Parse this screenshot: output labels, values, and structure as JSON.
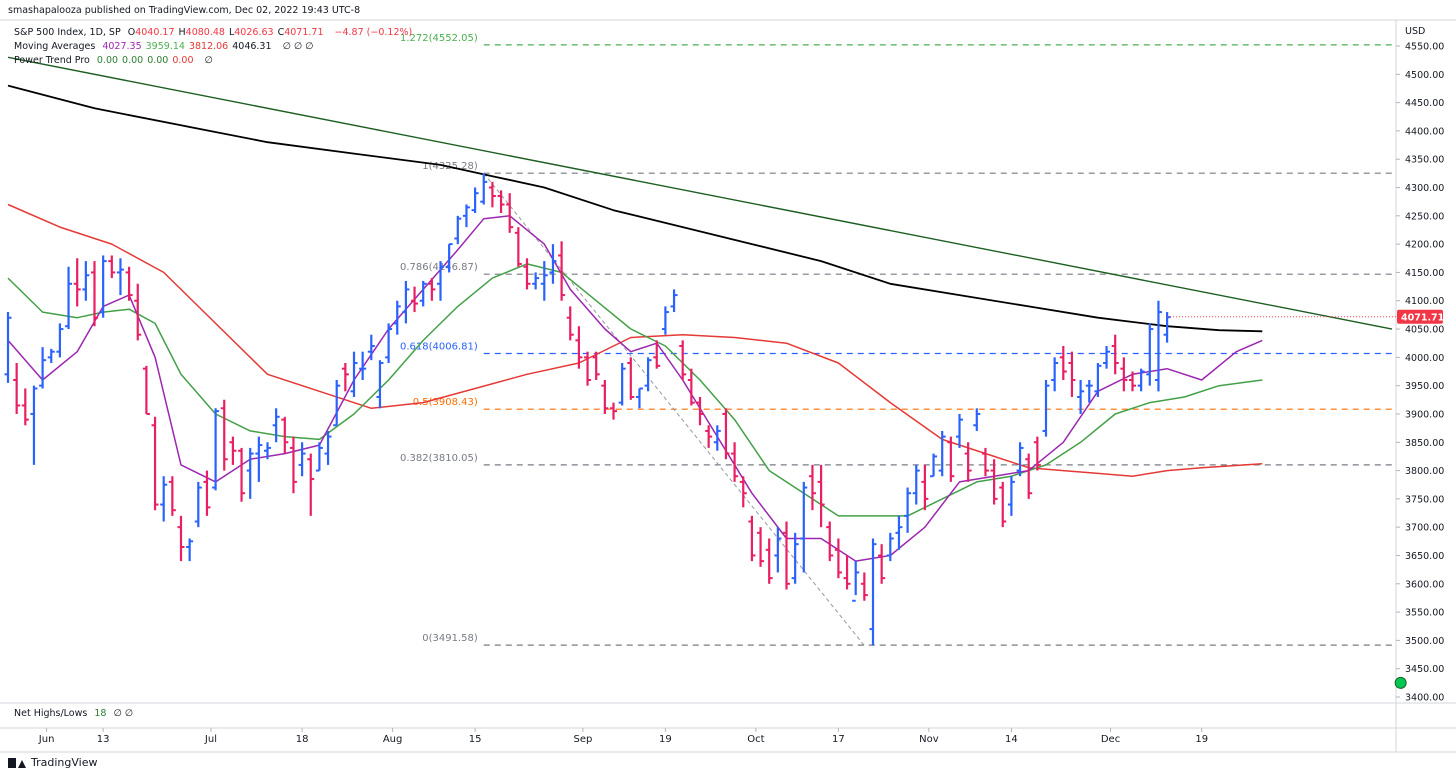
{
  "header": {
    "published": "smashapalooza published on TradingView.com, Dec 02, 2022 19:43 UTC-8",
    "symbol": "S&P 500 Index, 1D, SP",
    "ohlc": [
      {
        "k": "O",
        "v": "4040.17"
      },
      {
        "k": "H",
        "v": "4080.48"
      },
      {
        "k": "L",
        "v": "4026.63"
      },
      {
        "k": "C",
        "v": "4071.71"
      }
    ],
    "change": "−4.87 (−0.12%)",
    "ma_label": "Moving Averages",
    "ma_values": [
      {
        "v": "4027.35",
        "color": "#9c27b0"
      },
      {
        "v": "3959.14",
        "color": "#4caf50"
      },
      {
        "v": "3812.06",
        "color": "#e53935"
      },
      {
        "v": "4046.31",
        "color": "#131722"
      }
    ],
    "ma_extra": "∅ ∅ ∅",
    "ptp_label": "Power Trend Pro",
    "ptp_values": [
      {
        "v": "0.00",
        "color": "#2e7d32"
      },
      {
        "v": "0.00",
        "color": "#2e7d32"
      },
      {
        "v": "0.00",
        "color": "#2e7d32"
      },
      {
        "v": "0.00",
        "color": "#e53935"
      }
    ],
    "ptp_extra": "∅"
  },
  "subpane": {
    "label": "Net Highs/Lows",
    "value": "18",
    "extra": "∅ ∅"
  },
  "axis_currency": "USD",
  "footer": {
    "brand": "TradingView"
  },
  "colors": {
    "up": "#2962ff",
    "down": "#e91e63",
    "ma_fast": "#9c27b0",
    "ma_mid": "#43a047",
    "ma_slow": "#e53935",
    "ma200": "#000000",
    "trendline": "#1b5e20",
    "last_badge": "#f23645"
  },
  "chart_data": {
    "type": "ohlc",
    "title": "S&P 500 Index, 1D, SP",
    "y_axis": {
      "ylim": [
        3380,
        4600
      ],
      "ticks": [
        3400,
        3450,
        3500,
        3550,
        3600,
        3650,
        3700,
        3750,
        3800,
        3850,
        3900,
        3950,
        4000,
        4050,
        4100,
        4150,
        4200,
        4250,
        4300,
        4350,
        4400,
        4450,
        4500,
        4550
      ],
      "last_price": "4071.71"
    },
    "x_axis": {
      "labels": [
        {
          "t": "Jun",
          "i": 4
        },
        {
          "t": "13",
          "i": 11
        },
        {
          "t": "Jul",
          "i": 23
        },
        {
          "t": "18",
          "i": 34
        },
        {
          "t": "Aug",
          "i": 44
        },
        {
          "t": "15",
          "i": 54
        },
        {
          "t": "Sep",
          "i": 66
        },
        {
          "t": "19",
          "i": 76
        },
        {
          "t": "Oct",
          "i": 86
        },
        {
          "t": "17",
          "i": 96
        },
        {
          "t": "Nov",
          "i": 106
        },
        {
          "t": "14",
          "i": 116
        },
        {
          "t": "Dec",
          "i": 127
        },
        {
          "t": "19",
          "i": 138
        }
      ]
    },
    "fib_levels": [
      {
        "label": "1.272(4552.05)",
        "price": 4552.05,
        "color": "#4caf50"
      },
      {
        "label": "1(4325.28)",
        "price": 4325.28,
        "color": "#787b86"
      },
      {
        "label": "0.786(4146.87)",
        "price": 4146.87,
        "color": "#787b86"
      },
      {
        "label": "0.618(4006.81)",
        "price": 4006.81,
        "color": "#2962ff"
      },
      {
        "label": "0.5(3908.43)",
        "price": 3908.43,
        "color": "#ff6d00"
      },
      {
        "label": "0.382(3810.05)",
        "price": 3810.05,
        "color": "#787b86"
      },
      {
        "label": "0(3491.58)",
        "price": 3491.58,
        "color": "#787b86"
      }
    ],
    "fib_start_index": 55,
    "fib_end_index": 143,
    "first_bar_x": 8,
    "ohlc": [
      [
        3970,
        4080,
        3955,
        4070
      ],
      [
        3960,
        3990,
        3900,
        3915
      ],
      [
        3915,
        3945,
        3880,
        3890
      ],
      [
        3900,
        3950,
        3810,
        3945
      ],
      [
        3950,
        4018,
        3945,
        3995
      ],
      [
        4000,
        4015,
        3990,
        4010
      ],
      [
        4010,
        4060,
        4000,
        4050
      ],
      [
        4055,
        4160,
        4050,
        4130
      ],
      [
        4130,
        4175,
        4090,
        4120
      ],
      [
        4120,
        4170,
        4100,
        4145
      ],
      [
        4150,
        4170,
        4055,
        4070
      ],
      [
        4080,
        4180,
        4070,
        4170
      ],
      [
        4170,
        4180,
        4140,
        4150
      ],
      [
        4150,
        4175,
        4110,
        4155
      ],
      [
        4150,
        4160,
        4100,
        4110
      ],
      [
        4100,
        4130,
        4030,
        4040
      ],
      [
        3980,
        3985,
        3900,
        3900
      ],
      [
        3880,
        3895,
        3730,
        3740
      ],
      [
        3740,
        3790,
        3710,
        3775
      ],
      [
        3780,
        3790,
        3720,
        3730
      ],
      [
        3700,
        3720,
        3640,
        3665
      ],
      [
        3665,
        3680,
        3640,
        3675
      ],
      [
        3710,
        3780,
        3700,
        3770
      ],
      [
        3780,
        3800,
        3720,
        3735
      ],
      [
        3770,
        3910,
        3765,
        3905
      ],
      [
        3910,
        3925,
        3800,
        3820
      ],
      [
        3850,
        3860,
        3810,
        3835
      ],
      [
        3835,
        3840,
        3745,
        3760
      ],
      [
        3800,
        3840,
        3750,
        3830
      ],
      [
        3830,
        3860,
        3780,
        3845
      ],
      [
        3835,
        3850,
        3820,
        3840
      ],
      [
        3880,
        3910,
        3850,
        3895
      ],
      [
        3890,
        3895,
        3830,
        3850
      ],
      [
        3840,
        3860,
        3760,
        3780
      ],
      [
        3810,
        3850,
        3790,
        3830
      ],
      [
        3820,
        3830,
        3720,
        3785
      ],
      [
        3800,
        3850,
        3800,
        3840
      ],
      [
        3830,
        3870,
        3810,
        3860
      ],
      [
        3880,
        3960,
        3880,
        3950
      ],
      [
        3980,
        3990,
        3940,
        3970
      ],
      [
        3940,
        4010,
        3930,
        3990
      ],
      [
        3980,
        4010,
        3960,
        3980
      ],
      [
        4010,
        4040,
        3995,
        4020
      ],
      [
        3930,
        3995,
        3910,
        3990
      ],
      [
        4000,
        4060,
        3990,
        4050
      ],
      [
        4060,
        4100,
        4040,
        4090
      ],
      [
        4080,
        4135,
        4060,
        4120
      ],
      [
        4100,
        4125,
        4080,
        4095
      ],
      [
        4100,
        4135,
        4090,
        4130
      ],
      [
        4130,
        4140,
        4100,
        4120
      ],
      [
        4130,
        4170,
        4100,
        4160
      ],
      [
        4160,
        4200,
        4150,
        4200
      ],
      [
        4210,
        4250,
        4200,
        4245
      ],
      [
        4250,
        4270,
        4230,
        4265
      ],
      [
        4260,
        4300,
        4255,
        4290
      ],
      [
        4275,
        4325,
        4270,
        4310
      ],
      [
        4300,
        4310,
        4265,
        4285
      ],
      [
        4285,
        4295,
        4255,
        4270
      ],
      [
        4270,
        4290,
        4220,
        4230
      ],
      [
        4220,
        4230,
        4160,
        4165
      ],
      [
        4160,
        4175,
        4120,
        4130
      ],
      [
        4130,
        4150,
        4120,
        4140
      ],
      [
        4130,
        4170,
        4100,
        4145
      ],
      [
        4150,
        4200,
        4130,
        4170
      ],
      [
        4180,
        4205,
        4100,
        4110
      ],
      [
        4070,
        4090,
        4030,
        4040
      ],
      [
        4030,
        4055,
        3980,
        4000
      ],
      [
        4000,
        4010,
        3950,
        3960
      ],
      [
        4000,
        4010,
        3960,
        3970
      ],
      [
        3950,
        3960,
        3900,
        3910
      ],
      [
        3910,
        3920,
        3890,
        3905
      ],
      [
        3920,
        3990,
        3915,
        3980
      ],
      [
        3990,
        4000,
        3925,
        3930
      ],
      [
        3930,
        3945,
        3910,
        3945
      ],
      [
        3950,
        4000,
        3940,
        3995
      ],
      [
        4000,
        4030,
        3980,
        3985
      ],
      [
        4050,
        4090,
        4040,
        4080
      ],
      [
        4090,
        4120,
        4080,
        4110
      ],
      [
        4020,
        4030,
        3960,
        3970
      ],
      [
        3960,
        3980,
        3915,
        3920
      ],
      [
        3920,
        3930,
        3880,
        3900
      ],
      [
        3870,
        3880,
        3840,
        3860
      ],
      [
        3850,
        3880,
        3835,
        3870
      ],
      [
        3900,
        3910,
        3820,
        3830
      ],
      [
        3830,
        3850,
        3780,
        3790
      ],
      [
        3780,
        3790,
        3735,
        3760
      ],
      [
        3710,
        3720,
        3640,
        3650
      ],
      [
        3690,
        3700,
        3630,
        3640
      ],
      [
        3660,
        3680,
        3600,
        3610
      ],
      [
        3650,
        3700,
        3620,
        3680
      ],
      [
        3690,
        3710,
        3590,
        3600
      ],
      [
        3610,
        3690,
        3600,
        3670
      ],
      [
        3680,
        3780,
        3620,
        3770
      ],
      [
        3790,
        3810,
        3730,
        3760
      ],
      [
        3780,
        3810,
        3700,
        3740
      ],
      [
        3700,
        3710,
        3640,
        3650
      ],
      [
        3660,
        3680,
        3610,
        3620
      ],
      [
        3610,
        3650,
        3590,
        3600
      ],
      [
        3570,
        3640,
        3580,
        3620
      ],
      [
        3600,
        3620,
        3570,
        3580
      ],
      [
        3520,
        3680,
        3491,
        3670
      ],
      [
        3650,
        3670,
        3600,
        3610
      ],
      [
        3650,
        3690,
        3640,
        3680
      ],
      [
        3690,
        3720,
        3660,
        3700
      ],
      [
        3720,
        3770,
        3690,
        3760
      ],
      [
        3760,
        3810,
        3740,
        3800
      ],
      [
        3780,
        3810,
        3730,
        3750
      ],
      [
        3790,
        3830,
        3790,
        3825
      ],
      [
        3800,
        3870,
        3790,
        3860
      ],
      [
        3850,
        3860,
        3780,
        3790
      ],
      [
        3860,
        3900,
        3840,
        3890
      ],
      [
        3830,
        3850,
        3780,
        3800
      ],
      [
        3880,
        3910,
        3870,
        3900
      ],
      [
        3830,
        3840,
        3790,
        3800
      ],
      [
        3800,
        3820,
        3740,
        3750
      ],
      [
        3770,
        3780,
        3700,
        3710
      ],
      [
        3740,
        3790,
        3720,
        3780
      ],
      [
        3800,
        3850,
        3790,
        3840
      ],
      [
        3820,
        3830,
        3750,
        3760
      ],
      [
        3850,
        3860,
        3800,
        3810
      ],
      [
        3870,
        3960,
        3860,
        3950
      ],
      [
        3960,
        4000,
        3940,
        3990
      ],
      [
        4000,
        4020,
        3960,
        3975
      ],
      [
        3990,
        4010,
        3930,
        3960
      ],
      [
        3930,
        3960,
        3900,
        3940
      ],
      [
        3950,
        3960,
        3920,
        3950
      ],
      [
        3940,
        3990,
        3930,
        3985
      ],
      [
        3990,
        4020,
        3980,
        4010
      ],
      [
        4020,
        4040,
        3970,
        3990
      ],
      [
        3980,
        4000,
        3940,
        3960
      ],
      [
        3960,
        3975,
        3940,
        3950
      ],
      [
        3950,
        3980,
        3940,
        3975
      ],
      [
        3970,
        4060,
        3950,
        4050
      ],
      [
        3960,
        4100,
        3940,
        4080
      ],
      [
        4040,
        4080,
        4026,
        4071
      ]
    ],
    "ma_fast": [
      [
        0,
        4030
      ],
      [
        4,
        3960
      ],
      [
        8,
        4010
      ],
      [
        11,
        4090
      ],
      [
        14,
        4110
      ],
      [
        17,
        4000
      ],
      [
        20,
        3810
      ],
      [
        24,
        3780
      ],
      [
        28,
        3820
      ],
      [
        32,
        3830
      ],
      [
        36,
        3845
      ],
      [
        40,
        3960
      ],
      [
        44,
        4050
      ],
      [
        48,
        4120
      ],
      [
        52,
        4190
      ],
      [
        55,
        4245
      ],
      [
        58,
        4250
      ],
      [
        62,
        4200
      ],
      [
        65,
        4120
      ],
      [
        69,
        4050
      ],
      [
        72,
        4010
      ],
      [
        75,
        4025
      ],
      [
        78,
        3960
      ],
      [
        82,
        3860
      ],
      [
        86,
        3760
      ],
      [
        90,
        3680
      ],
      [
        94,
        3680
      ],
      [
        98,
        3640
      ],
      [
        102,
        3650
      ],
      [
        106,
        3700
      ],
      [
        110,
        3780
      ],
      [
        114,
        3790
      ],
      [
        118,
        3800
      ],
      [
        122,
        3850
      ],
      [
        126,
        3940
      ],
      [
        130,
        3970
      ],
      [
        134,
        3980
      ],
      [
        138,
        3960
      ],
      [
        142,
        4010
      ],
      [
        145,
        4030
      ]
    ],
    "ma_mid": [
      [
        0,
        4140
      ],
      [
        4,
        4080
      ],
      [
        8,
        4070
      ],
      [
        11,
        4080
      ],
      [
        14,
        4085
      ],
      [
        17,
        4060
      ],
      [
        20,
        3970
      ],
      [
        24,
        3900
      ],
      [
        28,
        3870
      ],
      [
        32,
        3860
      ],
      [
        36,
        3855
      ],
      [
        40,
        3900
      ],
      [
        44,
        3960
      ],
      [
        48,
        4030
      ],
      [
        52,
        4090
      ],
      [
        56,
        4140
      ],
      [
        60,
        4165
      ],
      [
        64,
        4150
      ],
      [
        68,
        4100
      ],
      [
        72,
        4050
      ],
      [
        76,
        4020
      ],
      [
        80,
        3960
      ],
      [
        84,
        3890
      ],
      [
        88,
        3800
      ],
      [
        92,
        3760
      ],
      [
        96,
        3720
      ],
      [
        100,
        3720
      ],
      [
        104,
        3720
      ],
      [
        108,
        3750
      ],
      [
        112,
        3780
      ],
      [
        116,
        3790
      ],
      [
        120,
        3810
      ],
      [
        124,
        3850
      ],
      [
        128,
        3900
      ],
      [
        132,
        3920
      ],
      [
        136,
        3930
      ],
      [
        140,
        3950
      ],
      [
        145,
        3960
      ]
    ],
    "ma_slow": [
      [
        0,
        4270
      ],
      [
        6,
        4230
      ],
      [
        12,
        4200
      ],
      [
        18,
        4150
      ],
      [
        24,
        4060
      ],
      [
        30,
        3970
      ],
      [
        36,
        3940
      ],
      [
        42,
        3910
      ],
      [
        48,
        3920
      ],
      [
        54,
        3945
      ],
      [
        60,
        3970
      ],
      [
        66,
        3990
      ],
      [
        72,
        4035
      ],
      [
        78,
        4040
      ],
      [
        84,
        4035
      ],
      [
        90,
        4025
      ],
      [
        96,
        3990
      ],
      [
        102,
        3920
      ],
      [
        108,
        3855
      ],
      [
        114,
        3825
      ],
      [
        118,
        3805
      ],
      [
        122,
        3800
      ],
      [
        126,
        3795
      ],
      [
        130,
        3790
      ],
      [
        134,
        3800
      ],
      [
        138,
        3805
      ],
      [
        145,
        3812
      ]
    ],
    "ma200": [
      [
        0,
        4480
      ],
      [
        10,
        4440
      ],
      [
        20,
        4410
      ],
      [
        30,
        4380
      ],
      [
        40,
        4360
      ],
      [
        50,
        4340
      ],
      [
        56,
        4320
      ],
      [
        62,
        4300
      ],
      [
        70,
        4260
      ],
      [
        78,
        4230
      ],
      [
        86,
        4200
      ],
      [
        94,
        4170
      ],
      [
        102,
        4130
      ],
      [
        110,
        4110
      ],
      [
        118,
        4090
      ],
      [
        126,
        4070
      ],
      [
        134,
        4055
      ],
      [
        140,
        4048
      ],
      [
        145,
        4046
      ]
    ],
    "trendline": {
      "x1": 0,
      "y1": 4530,
      "x2": 160,
      "y2": 4050
    },
    "fib_guide": {
      "x1": 55,
      "y1": 4325,
      "x2": 99,
      "y2": 3491
    },
    "annotations": {
      "green_dot": {
        "i": 161,
        "price": 3425
      }
    }
  }
}
